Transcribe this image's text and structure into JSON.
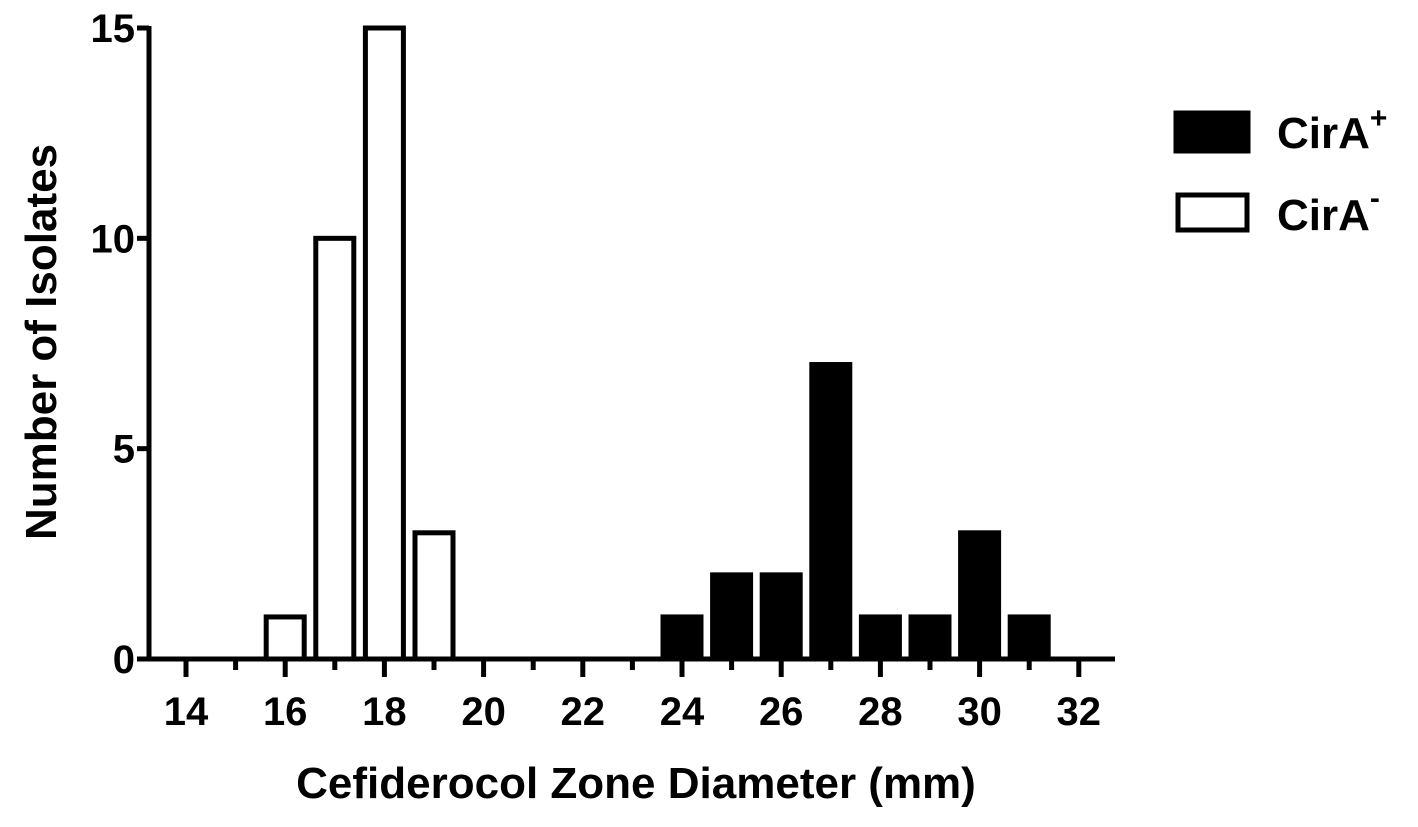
{
  "chart_data": {
    "type": "bar",
    "xlabel": "Cefiderocol Zone Diameter (mm)",
    "ylabel": "Number of Isolates",
    "xlim": [
      13.5,
      33
    ],
    "ylim": [
      0,
      15
    ],
    "x_ticks": [
      14,
      16,
      18,
      20,
      22,
      24,
      26,
      28,
      30,
      32
    ],
    "y_ticks": [
      0,
      5,
      10,
      15
    ],
    "grid": false,
    "legend_position": "top-right",
    "series": [
      {
        "key": "cira_plus",
        "label": "CirA",
        "label_sup": "+",
        "fill": "#000000",
        "points": [
          {
            "x": 24,
            "y": 1
          },
          {
            "x": 25,
            "y": 2
          },
          {
            "x": 26,
            "y": 2
          },
          {
            "x": 27,
            "y": 7
          },
          {
            "x": 28,
            "y": 1
          },
          {
            "x": 29,
            "y": 1
          },
          {
            "x": 30,
            "y": 3
          },
          {
            "x": 31,
            "y": 1
          }
        ]
      },
      {
        "key": "cira_minus",
        "label": "CirA",
        "label_sup": "-",
        "fill": "#ffffff",
        "points": [
          {
            "x": 16,
            "y": 1
          },
          {
            "x": 17,
            "y": 10
          },
          {
            "x": 18,
            "y": 15
          },
          {
            "x": 19,
            "y": 3
          }
        ]
      }
    ]
  }
}
